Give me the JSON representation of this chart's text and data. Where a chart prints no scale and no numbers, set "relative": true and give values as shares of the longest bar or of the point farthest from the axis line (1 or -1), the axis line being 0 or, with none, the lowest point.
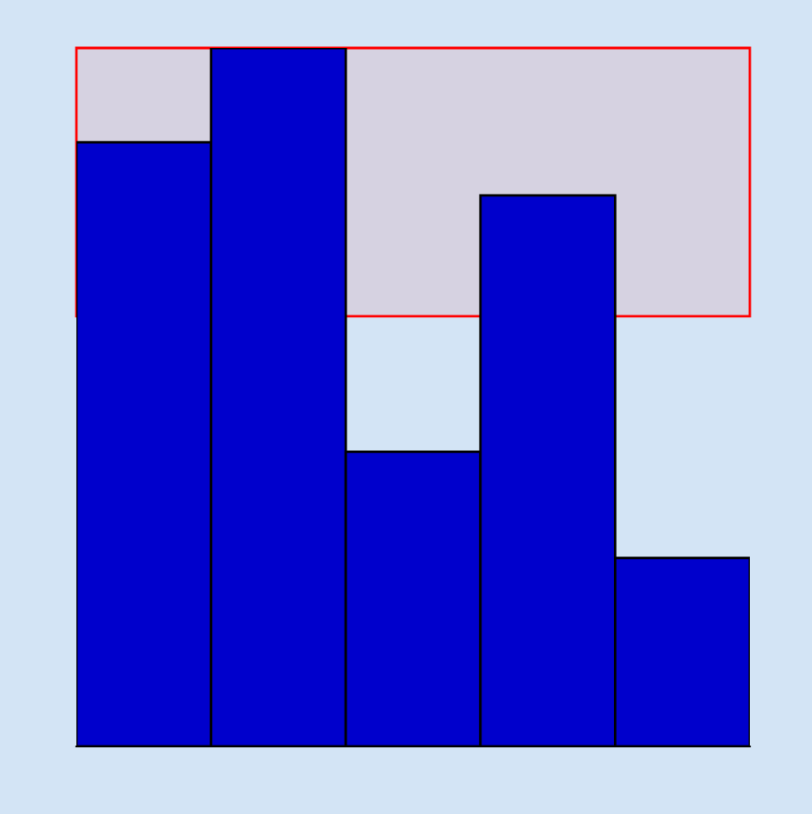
{
  "chart_data": {
    "type": "bar",
    "relative": true,
    "categories": [
      null,
      null,
      null,
      null,
      null
    ],
    "values": [
      0.865,
      1,
      0.422,
      0.789,
      0.27
    ],
    "color": "#0000cc",
    "bands": [
      {
        "axis": "y",
        "from": 0.616,
        "to": 1.0,
        "color": "#ff0000"
      }
    ]
  }
}
